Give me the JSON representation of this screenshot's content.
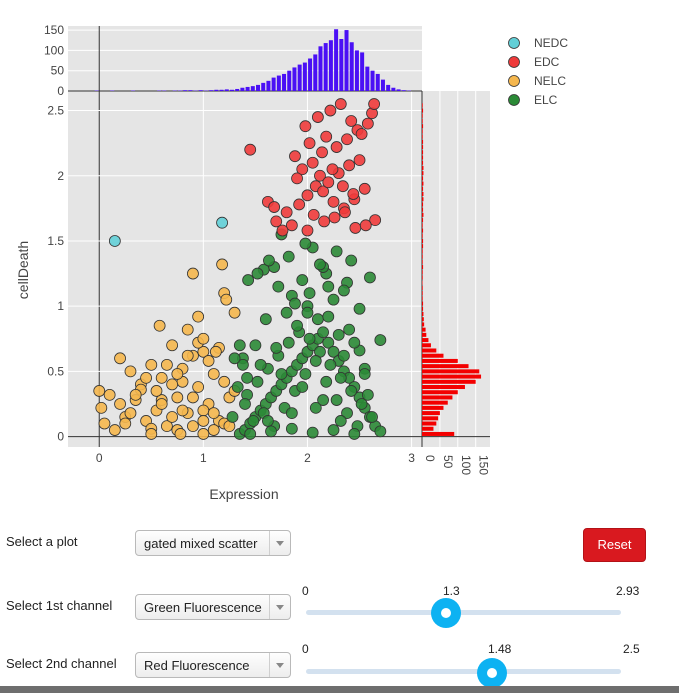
{
  "chart_data": {
    "type": "scatter",
    "title": "",
    "xlabel": "Expression",
    "ylabel": "cellDeath",
    "xlim": [
      -0.3,
      3.1
    ],
    "ylim": [
      -0.08,
      2.65
    ],
    "x_ticks": [
      0,
      1,
      2,
      3
    ],
    "y_ticks": [
      0,
      0.5,
      1,
      1.5,
      2,
      2.5
    ],
    "grid": true,
    "legend_position": "top-right",
    "series": [
      {
        "name": "NEDC",
        "color": "#62cfd7",
        "x": [
          0.15,
          1.18
        ],
        "y": [
          1.5,
          1.64
        ]
      },
      {
        "name": "EDC",
        "color": "#ef3b3b",
        "x": [
          1.45,
          1.62,
          1.68,
          1.8,
          1.92,
          2.0,
          2.08,
          2.15,
          2.25,
          2.35,
          2.45,
          2.55,
          2.65,
          1.95,
          2.05,
          2.12,
          2.2,
          2.3,
          2.4,
          2.5,
          1.88,
          2.02,
          2.18,
          2.28,
          2.38,
          2.48,
          2.58,
          1.98,
          2.1,
          2.22,
          2.32,
          2.42,
          2.52,
          2.62,
          1.9,
          2.06,
          2.16,
          2.26,
          2.36,
          2.46,
          2.56,
          2.0,
          2.14,
          2.24,
          2.34,
          2.44,
          1.85,
          1.7,
          1.76,
          2.64
        ],
        "y": [
          2.2,
          1.8,
          1.76,
          1.72,
          1.78,
          1.85,
          1.92,
          1.88,
          1.8,
          1.75,
          1.82,
          1.9,
          1.66,
          2.05,
          2.1,
          2.0,
          1.95,
          2.02,
          2.08,
          2.12,
          2.15,
          2.25,
          2.3,
          2.22,
          2.28,
          2.35,
          2.4,
          2.38,
          2.45,
          2.5,
          2.55,
          2.42,
          2.32,
          2.48,
          1.98,
          1.7,
          1.65,
          1.68,
          1.72,
          1.6,
          1.62,
          1.58,
          2.18,
          2.05,
          1.92,
          1.86,
          1.62,
          1.65,
          1.58,
          2.55
        ]
      },
      {
        "name": "NELC",
        "color": "#f5b74e",
        "x": [
          0.0,
          0.02,
          0.05,
          0.1,
          0.15,
          0.2,
          0.25,
          0.3,
          0.35,
          0.4,
          0.45,
          0.5,
          0.55,
          0.6,
          0.65,
          0.7,
          0.75,
          0.8,
          0.85,
          0.9,
          0.95,
          1.0,
          1.05,
          1.1,
          1.15,
          1.2,
          1.25,
          1.3,
          0.2,
          0.3,
          0.4,
          0.5,
          0.6,
          0.7,
          0.8,
          0.9,
          1.0,
          1.1,
          1.2,
          0.55,
          0.65,
          0.75,
          0.85,
          0.95,
          1.05,
          1.15,
          0.35,
          0.45,
          0.6,
          0.7,
          0.8,
          0.9,
          1.0,
          1.1,
          0.25,
          0.5,
          0.75,
          1.0,
          1.25,
          0.85,
          0.95,
          1.2,
          1.18,
          0.9,
          1.22,
          1.3,
          0.58,
          1.0,
          1.12,
          0.78
        ],
        "y": [
          0.35,
          0.22,
          0.1,
          0.32,
          0.05,
          0.6,
          0.15,
          0.5,
          0.28,
          0.4,
          0.12,
          0.55,
          0.2,
          0.45,
          0.08,
          0.7,
          0.3,
          0.52,
          0.18,
          0.62,
          0.38,
          0.65,
          0.25,
          0.48,
          0.12,
          0.42,
          0.3,
          0.35,
          0.25,
          0.18,
          0.36,
          0.06,
          0.28,
          0.15,
          0.42,
          0.08,
          0.2,
          0.05,
          0.1,
          0.35,
          0.55,
          0.48,
          0.62,
          0.72,
          0.58,
          0.68,
          0.32,
          0.45,
          0.25,
          0.4,
          0.2,
          0.3,
          0.12,
          0.18,
          0.1,
          0.02,
          0.05,
          0.02,
          0.08,
          0.82,
          0.92,
          1.1,
          1.32,
          1.25,
          1.05,
          0.95,
          0.85,
          0.75,
          0.65,
          0.02
        ]
      },
      {
        "name": "ELC",
        "color": "#2b8a36",
        "x": [
          1.35,
          1.4,
          1.45,
          1.5,
          1.55,
          1.6,
          1.65,
          1.7,
          1.75,
          1.8,
          1.85,
          1.9,
          1.95,
          2.0,
          2.05,
          2.1,
          2.15,
          2.2,
          2.25,
          2.3,
          2.35,
          2.4,
          2.45,
          2.5,
          2.55,
          2.6,
          2.65,
          2.7,
          1.42,
          1.52,
          1.62,
          1.72,
          1.82,
          1.92,
          2.02,
          2.12,
          2.22,
          2.32,
          2.42,
          2.52,
          2.62,
          1.48,
          1.58,
          1.68,
          1.78,
          1.88,
          1.98,
          2.08,
          2.18,
          2.28,
          2.38,
          2.48,
          2.58,
          1.38,
          1.55,
          1.75,
          1.95,
          2.15,
          2.35,
          2.55,
          1.45,
          1.65,
          1.85,
          2.05,
          2.25,
          2.45,
          1.5,
          1.7,
          1.9,
          2.1,
          2.3,
          2.5,
          1.6,
          1.8,
          2.0,
          2.2,
          2.4,
          1.4,
          1.62,
          1.85,
          2.08,
          2.32,
          2.55,
          1.28,
          1.33,
          1.38,
          2.02,
          2.25,
          2.5,
          1.72,
          1.95,
          2.18,
          2.42,
          1.58,
          1.82,
          2.05,
          2.28,
          2.15,
          1.98,
          1.75,
          2.38,
          2.6,
          1.85,
          2.12,
          2.35,
          1.52,
          1.68,
          1.88,
          2.0,
          2.2,
          1.43,
          1.63,
          2.45,
          2.7,
          1.3,
          1.35,
          1.42
        ],
        "y": [
          0.02,
          0.05,
          0.1,
          0.15,
          0.2,
          0.25,
          0.3,
          0.35,
          0.4,
          0.45,
          0.5,
          0.55,
          0.6,
          0.65,
          0.7,
          0.75,
          0.8,
          0.72,
          0.65,
          0.58,
          0.5,
          0.45,
          0.38,
          0.3,
          0.22,
          0.15,
          0.08,
          0.04,
          0.32,
          0.42,
          0.52,
          0.62,
          0.72,
          0.8,
          0.75,
          0.65,
          0.55,
          0.45,
          0.35,
          0.25,
          0.15,
          0.12,
          0.18,
          0.08,
          0.22,
          0.35,
          0.48,
          0.58,
          0.42,
          0.28,
          0.18,
          0.08,
          0.32,
          0.6,
          0.55,
          0.48,
          0.38,
          0.28,
          0.62,
          0.52,
          0.02,
          0.04,
          0.06,
          0.03,
          0.05,
          0.02,
          0.7,
          0.68,
          0.85,
          0.9,
          0.78,
          0.66,
          0.9,
          0.95,
          1.0,
          0.92,
          0.82,
          0.25,
          0.12,
          0.18,
          0.22,
          0.12,
          0.48,
          0.15,
          0.38,
          0.55,
          1.1,
          1.05,
          0.98,
          1.15,
          1.2,
          1.25,
          1.35,
          1.28,
          1.38,
          1.45,
          1.42,
          1.3,
          1.48,
          1.55,
          1.18,
          1.22,
          1.08,
          1.32,
          1.12,
          1.25,
          1.3,
          1.02,
          0.95,
          1.15,
          1.2,
          1.35,
          0.72,
          0.74,
          0.6,
          0.7,
          0.45
        ]
      }
    ],
    "top_histogram": {
      "color": "#4a10f5",
      "ylim": [
        0,
        160
      ],
      "ticks": [
        0,
        50,
        100,
        150
      ],
      "bin_width": 0.05,
      "x_start": -0.05,
      "values": [
        1,
        0,
        0,
        1,
        0,
        0,
        0,
        1,
        0,
        0,
        0,
        0,
        1,
        1,
        0,
        1,
        1,
        2,
        2,
        1,
        2,
        1,
        2,
        3,
        3,
        4,
        3,
        5,
        8,
        10,
        12,
        15,
        20,
        25,
        33,
        38,
        42,
        50,
        58,
        65,
        70,
        80,
        90,
        110,
        118,
        125,
        152,
        128,
        150,
        120,
        100,
        95,
        60,
        50,
        42,
        28,
        15,
        8,
        4,
        2,
        1
      ]
    },
    "right_histogram": {
      "color": "#f30000",
      "xlim": [
        0,
        190
      ],
      "ticks": [
        0,
        50,
        100,
        150
      ],
      "bin_width": 0.04,
      "values": [
        90,
        32,
        40,
        45,
        50,
        60,
        72,
        85,
        100,
        120,
        150,
        165,
        160,
        130,
        100,
        60,
        40,
        25,
        18,
        12,
        10,
        6,
        5,
        4,
        3,
        3,
        2,
        2,
        2,
        1,
        2,
        2,
        3,
        2,
        2,
        2,
        3,
        3,
        2,
        3,
        2,
        3,
        4,
        3,
        3,
        4,
        4,
        3,
        4,
        3,
        4,
        4,
        3,
        3,
        3,
        3,
        3,
        2,
        2,
        3,
        2,
        2,
        3,
        2
      ]
    }
  },
  "controls": {
    "plot_label": "Select a plot",
    "plot_value": "gated mixed scatter",
    "channel1_label": "Select 1st channel",
    "channel1_value": "Green Fluorescence",
    "channel2_label": "Select 2nd channel",
    "channel2_value": "Red Fluorescence",
    "reset_label": "Reset",
    "slider1": {
      "min": "0",
      "max": "2.93",
      "value": "1.3",
      "fraction": 0.4437
    },
    "slider2": {
      "min": "0",
      "max": "2.5",
      "value": "1.48",
      "fraction": 0.592
    }
  }
}
